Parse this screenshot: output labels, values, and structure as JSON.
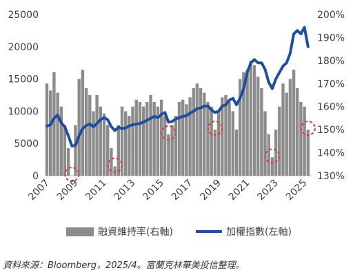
{
  "chart_data": {
    "type": "bar+line",
    "x_tick_labels": [
      "2007",
      "2009",
      "2011",
      "2013",
      "2015",
      "2017",
      "2019",
      "2021",
      "2023",
      "2025"
    ],
    "left_axis": {
      "ticks": [
        0,
        5000,
        10000,
        15000,
        20000,
        25000
      ],
      "ylim": [
        0,
        25000
      ]
    },
    "right_axis": {
      "ticks": [
        "130%",
        "140%",
        "150%",
        "160%",
        "170%",
        "180%",
        "190%",
        "200%"
      ],
      "ylim": [
        130,
        200
      ]
    },
    "series": [
      {
        "name": "融資維持率(右軸)",
        "type": "bar",
        "axis": "right",
        "color": "#8c8c8c",
        "x": [
          2007.0,
          2007.25,
          2007.5,
          2007.75,
          2008.0,
          2008.25,
          2008.5,
          2008.75,
          2009.0,
          2009.25,
          2009.5,
          2009.75,
          2010.0,
          2010.25,
          2010.5,
          2010.75,
          2011.0,
          2011.25,
          2011.5,
          2011.75,
          2012.0,
          2012.25,
          2012.5,
          2012.75,
          2013.0,
          2013.25,
          2013.5,
          2013.75,
          2014.0,
          2014.25,
          2014.5,
          2014.75,
          2015.0,
          2015.25,
          2015.5,
          2015.75,
          2016.0,
          2016.25,
          2016.5,
          2016.75,
          2017.0,
          2017.25,
          2017.5,
          2017.75,
          2018.0,
          2018.25,
          2018.5,
          2018.75,
          2019.0,
          2019.25,
          2019.5,
          2019.75,
          2020.0,
          2020.25,
          2020.5,
          2020.75,
          2021.0,
          2021.25,
          2021.5,
          2021.75,
          2022.0,
          2022.25,
          2022.5,
          2022.75,
          2023.0,
          2023.25,
          2023.5,
          2023.75,
          2024.0,
          2024.25,
          2024.5,
          2024.75,
          2025.0,
          2025.25
        ],
        "values": [
          170,
          167,
          175,
          166,
          160,
          152,
          142,
          130,
          152,
          172,
          176,
          168,
          165,
          158,
          165,
          160,
          157,
          152,
          142,
          134,
          152,
          160,
          158,
          156,
          160,
          163,
          162,
          160,
          162,
          165,
          162,
          160,
          163,
          156,
          148,
          152,
          156,
          162,
          163,
          161,
          164,
          168,
          170,
          168,
          166,
          162,
          160,
          150,
          158,
          164,
          165,
          162,
          158,
          150,
          172,
          175,
          176,
          180,
          178,
          173,
          168,
          158,
          148,
          138,
          150,
          160,
          170,
          166,
          172,
          176,
          168,
          162,
          160,
          150
        ]
      },
      {
        "name": "加權指數(左軸)",
        "type": "line",
        "axis": "left",
        "color": "#1f4e9e",
        "x": [
          2007.0,
          2007.25,
          2007.5,
          2007.75,
          2008.0,
          2008.25,
          2008.5,
          2008.75,
          2009.0,
          2009.25,
          2009.5,
          2009.75,
          2010.0,
          2010.25,
          2010.5,
          2010.75,
          2011.0,
          2011.25,
          2011.5,
          2011.75,
          2012.0,
          2012.25,
          2012.5,
          2012.75,
          2013.0,
          2013.25,
          2013.5,
          2013.75,
          2014.0,
          2014.25,
          2014.5,
          2014.75,
          2015.0,
          2015.25,
          2015.5,
          2015.75,
          2016.0,
          2016.25,
          2016.5,
          2016.75,
          2017.0,
          2017.25,
          2017.5,
          2017.75,
          2018.0,
          2018.25,
          2018.5,
          2018.75,
          2019.0,
          2019.25,
          2019.5,
          2019.75,
          2020.0,
          2020.25,
          2020.5,
          2020.75,
          2021.0,
          2021.25,
          2021.5,
          2021.75,
          2022.0,
          2022.25,
          2022.5,
          2022.75,
          2023.0,
          2023.25,
          2023.5,
          2023.75,
          2024.0,
          2024.25,
          2024.5,
          2024.75,
          2025.0,
          2025.25
        ],
        "values": [
          7700,
          7900,
          8900,
          9400,
          8200,
          7600,
          6200,
          4600,
          4700,
          6200,
          7300,
          7800,
          8000,
          7600,
          8100,
          8700,
          9000,
          8700,
          7600,
          7000,
          7500,
          7300,
          7400,
          7700,
          7900,
          8000,
          8100,
          8300,
          8600,
          8900,
          9200,
          9000,
          9500,
          9800,
          8300,
          8400,
          8800,
          9000,
          9200,
          9300,
          9700,
          10000,
          10400,
          10500,
          10800,
          10800,
          10200,
          9800,
          10000,
          10800,
          11000,
          11700,
          12000,
          11000,
          12000,
          13500,
          16000,
          17500,
          18000,
          17500,
          17500,
          16500,
          14500,
          13500,
          15000,
          16000,
          17000,
          17500,
          19000,
          22000,
          22500,
          22000,
          23000,
          20000
        ]
      }
    ],
    "annotations": [
      "dashed red circles marking troughs of 融資維持率 in 2009, 2012, 2015, 2018/2019, 2022, 2025"
    ]
  },
  "source_note": "資料來源：Bloomberg，2025/4。富蘭克林華美投信整理。"
}
